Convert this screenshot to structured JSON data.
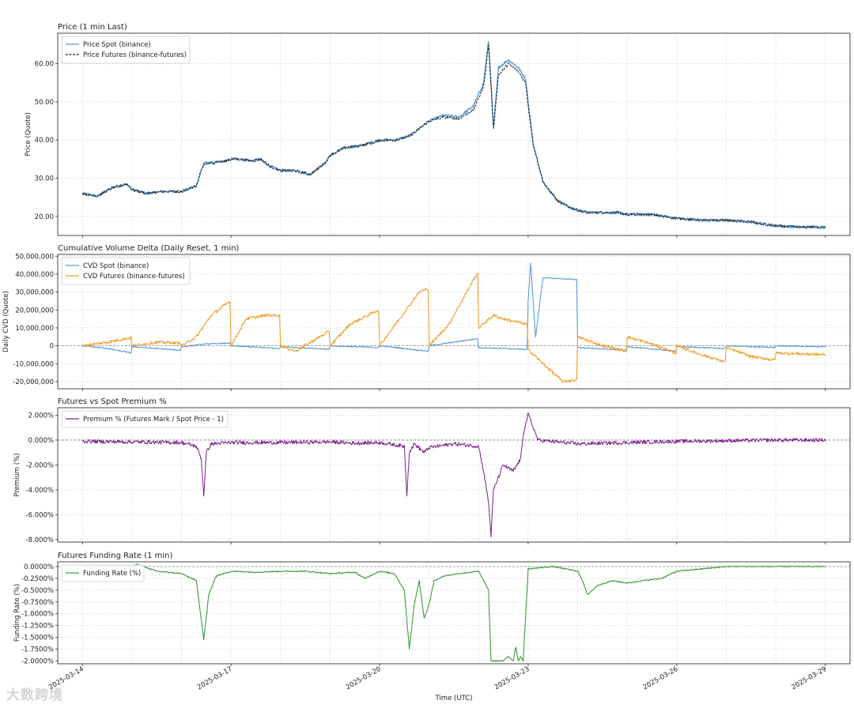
{
  "x_axis": {
    "label": "Time (UTC)",
    "range": [
      -0.5,
      15.5
    ],
    "ticks": [
      {
        "v": 0,
        "label": "2025-03-14"
      },
      {
        "v": 3,
        "label": "2025-03-17"
      },
      {
        "v": 6,
        "label": "2025-03-20"
      },
      {
        "v": 9,
        "label": "2025-03-23"
      },
      {
        "v": 12,
        "label": "2025-03-26"
      },
      {
        "v": 15,
        "label": "2025-03-29"
      }
    ],
    "grid_days": [
      0,
      1,
      2,
      3,
      4,
      5,
      6,
      7,
      8,
      9,
      10,
      11,
      12,
      13,
      14,
      15
    ]
  },
  "watermark": "大数跨境",
  "chart_data": [
    {
      "id": "price",
      "type": "line",
      "title": "Price (1 min Last)",
      "ylabel": "Price (Quote)",
      "ylim": [
        15,
        68
      ],
      "yticks": [
        {
          "v": 20,
          "label": "20.00"
        },
        {
          "v": 30,
          "label": "30.00"
        },
        {
          "v": 40,
          "label": "40.00"
        },
        {
          "v": 50,
          "label": "50.00"
        },
        {
          "v": 60,
          "label": "60.00"
        }
      ],
      "zero_line": false,
      "series": [
        {
          "name": "Price Spot (binance)",
          "color": "#5b9bd5",
          "dash": false,
          "width": 1.4,
          "noise": 0.35,
          "offset": 0,
          "x": [
            0,
            0.3,
            0.6,
            0.9,
            1.0,
            1.3,
            1.6,
            2.0,
            2.3,
            2.4,
            2.45,
            2.6,
            2.9,
            3.0,
            3.2,
            3.4,
            3.6,
            3.8,
            4.0,
            4.3,
            4.6,
            4.9,
            5.0,
            5.3,
            5.6,
            5.9,
            6.0,
            6.3,
            6.6,
            6.9,
            7.0,
            7.3,
            7.6,
            7.9,
            8.0,
            8.1,
            8.2,
            8.25,
            8.3,
            8.4,
            8.6,
            8.8,
            8.9,
            8.95,
            9.0,
            9.1,
            9.3,
            9.6,
            9.9,
            10.2,
            10.5,
            10.8,
            11.0,
            11.5,
            12.0,
            12.5,
            13.0,
            13.5,
            14.0,
            14.5,
            15.0
          ],
          "y": [
            26,
            25.3,
            27.5,
            28.5,
            27,
            26,
            26.5,
            26.5,
            28,
            32,
            34,
            34,
            34.5,
            35,
            35,
            34.5,
            35,
            33,
            32,
            32,
            31,
            34,
            36,
            38,
            38.5,
            39.5,
            40,
            40,
            41,
            44,
            45,
            46.5,
            46,
            49,
            52,
            55,
            66,
            55,
            43,
            59,
            61,
            59,
            57,
            56,
            50,
            39,
            29,
            24,
            22,
            21,
            21,
            21,
            20.5,
            20.5,
            19.5,
            19,
            19,
            18.5,
            17.5,
            17.2,
            17.2
          ]
        },
        {
          "name": "Price Futures (binance-futures)",
          "color": "#1f1f1f",
          "dash": true,
          "width": 1.0,
          "noise": 0.35,
          "offset": -0.5,
          "x": [
            0,
            0.3,
            0.6,
            0.9,
            1.0,
            1.3,
            1.6,
            2.0,
            2.3,
            2.4,
            2.45,
            2.6,
            2.9,
            3.0,
            3.2,
            3.4,
            3.6,
            3.8,
            4.0,
            4.3,
            4.6,
            4.9,
            5.0,
            5.3,
            5.6,
            5.9,
            6.0,
            6.3,
            6.6,
            6.9,
            7.0,
            7.3,
            7.6,
            7.9,
            8.0,
            8.1,
            8.2,
            8.25,
            8.3,
            8.4,
            8.6,
            8.8,
            8.9,
            8.95,
            9.0,
            9.1,
            9.3,
            9.6,
            9.9,
            10.2,
            10.5,
            10.8,
            11.0,
            11.5,
            12.0,
            12.5,
            13.0,
            13.5,
            14.0,
            14.5,
            15.0
          ],
          "y": [
            26,
            25.3,
            27.5,
            28.5,
            27,
            26,
            26.5,
            26.5,
            28,
            32,
            33.5,
            34,
            34.5,
            35,
            35,
            34.5,
            35,
            33,
            32,
            32,
            31,
            34,
            36,
            38,
            38.5,
            39.5,
            40,
            40,
            41,
            44,
            45,
            46,
            45.5,
            48,
            51,
            54,
            65,
            54,
            43,
            57,
            60,
            58,
            56,
            55,
            49,
            39,
            29,
            24,
            22,
            21,
            21,
            21,
            20.5,
            20.5,
            19.5,
            19,
            19,
            18.5,
            17.5,
            17.2,
            17.2
          ]
        }
      ]
    },
    {
      "id": "cvd",
      "type": "line",
      "title": "Cumulative Volume Delta (Daily Reset, 1 min)",
      "ylabel": "Daily CVD (Quote)",
      "ylim": [
        -24000000,
        51000000
      ],
      "yticks": [
        {
          "v": 50000000,
          "label": "50,000,000"
        },
        {
          "v": 40000000,
          "label": "40,000,000"
        },
        {
          "v": 30000000,
          "label": "30,000,000"
        },
        {
          "v": 20000000,
          "label": "20,000,000"
        },
        {
          "v": 10000000,
          "label": "10,000,000"
        },
        {
          "v": 0,
          "label": "0"
        },
        {
          "v": -10000000,
          "label": "-10,000,000"
        },
        {
          "v": -20000000,
          "label": "-20,000,000"
        }
      ],
      "zero_line": true,
      "series": [
        {
          "name": "CVD Spot (binance)",
          "color": "#5b9bd5",
          "dash": false,
          "width": 1.1,
          "noise": 300000,
          "offset": 0,
          "x": [
            0,
            0.5,
            0.98,
            1.0,
            1.98,
            2.0,
            2.5,
            2.98,
            3.0,
            3.98,
            4.0,
            4.98,
            5.0,
            5.98,
            6.0,
            6.98,
            7.0,
            7.5,
            7.98,
            8.0,
            8.98,
            9.0,
            9.05,
            9.15,
            9.3,
            9.98,
            10.0,
            10.98,
            11.0,
            11.98,
            12.0,
            12.98,
            13.0,
            13.98,
            14.0,
            15.0
          ],
          "y": [
            0,
            -1500000,
            -4000000,
            -500000,
            -2500000,
            -500000,
            1000000,
            1500000,
            0,
            -1500000,
            -500000,
            -2000000,
            0,
            -1000000,
            0,
            -3000000,
            0,
            2000000,
            4000000,
            -1000000,
            -2000000,
            25000000,
            46000000,
            5000000,
            38000000,
            37000000,
            -1000000,
            -2500000,
            -500000,
            -3000000,
            -500000,
            -1500000,
            0,
            -1000000,
            0,
            -500000
          ]
        },
        {
          "name": "CVD Futures (binance-futures)",
          "color": "#f0a030",
          "dash": false,
          "width": 1.1,
          "noise": 800000,
          "offset": 0,
          "x": [
            0,
            0.5,
            0.98,
            1.0,
            1.5,
            1.98,
            2.0,
            2.3,
            2.6,
            2.98,
            3.0,
            3.3,
            3.7,
            3.98,
            4.0,
            4.3,
            4.98,
            5.0,
            5.4,
            5.98,
            6.0,
            6.4,
            6.8,
            6.98,
            7.0,
            7.4,
            7.98,
            8.0,
            8.3,
            8.5,
            8.98,
            9.0,
            9.3,
            9.7,
            9.98,
            10.0,
            10.5,
            10.98,
            11.0,
            11.5,
            11.98,
            12.0,
            12.5,
            12.98,
            13.0,
            13.5,
            13.98,
            14.0,
            15.0
          ],
          "y": [
            0,
            2000000,
            4500000,
            0,
            2000000,
            1500000,
            0,
            5000000,
            17000000,
            25000000,
            0,
            15000000,
            17000000,
            17000000,
            0,
            -3000000,
            8000000,
            0,
            12000000,
            20000000,
            0,
            15000000,
            30000000,
            32000000,
            0,
            12000000,
            41000000,
            10000000,
            17000000,
            15000000,
            12000000,
            -2000000,
            -10000000,
            -20000000,
            -19000000,
            5000000,
            0,
            -3000000,
            5000000,
            1000000,
            -4000000,
            0,
            -5000000,
            -9000000,
            -1000000,
            -6000000,
            -8000000,
            -4000000,
            -5000000
          ]
        }
      ]
    },
    {
      "id": "premium",
      "type": "line",
      "title": "Futures vs Spot Premium %",
      "ylabel": "Premium (%)",
      "ylim": [
        -8.2,
        2.6
      ],
      "yticks": [
        {
          "v": 2,
          "label": "2.000%"
        },
        {
          "v": 0,
          "label": "0.000%"
        },
        {
          "v": -2,
          "label": "-2.000%"
        },
        {
          "v": -4,
          "label": "-4.000%"
        },
        {
          "v": -6,
          "label": "-6.000%"
        },
        {
          "v": -8,
          "label": "-8.000%"
        }
      ],
      "zero_line": true,
      "series": [
        {
          "name": "Premium % (Futures Mark / Spot Price - 1)",
          "color": "#7b1f8a",
          "dash": false,
          "width": 1.0,
          "noise": 0.15,
          "offset": 0,
          "x": [
            0,
            1.0,
            2.0,
            2.3,
            2.4,
            2.45,
            2.5,
            2.6,
            3.0,
            4.0,
            5.0,
            5.5,
            6.0,
            6.5,
            6.55,
            6.6,
            6.7,
            6.9,
            7.0,
            7.5,
            8.0,
            8.1,
            8.2,
            8.25,
            8.3,
            8.4,
            8.5,
            8.7,
            8.85,
            8.9,
            9.0,
            9.2,
            10.0,
            11.0,
            12.0,
            13.0,
            14.0,
            15.0
          ],
          "y": [
            -0.1,
            -0.15,
            -0.2,
            -0.5,
            -1.5,
            -4.5,
            -1.0,
            -0.3,
            -0.2,
            -0.2,
            -0.15,
            -0.25,
            -0.2,
            -0.5,
            -4.4,
            -1.0,
            -0.3,
            -1.0,
            -0.6,
            -0.3,
            -0.5,
            -2.5,
            -5.0,
            -7.7,
            -4.0,
            -3.0,
            -2.0,
            -2.5,
            -1.5,
            0.5,
            2.1,
            0.0,
            -0.3,
            -0.2,
            -0.1,
            -0.05,
            0.0,
            0.0
          ]
        }
      ]
    },
    {
      "id": "funding",
      "type": "line",
      "title": "Futures Funding Rate (1 min)",
      "ylabel": "Funding Rate (%)",
      "ylim": [
        -2.06,
        0.1
      ],
      "yticks": [
        {
          "v": 0,
          "label": "0.0000%"
        },
        {
          "v": -0.25,
          "label": "-0.2500%"
        },
        {
          "v": -0.5,
          "label": "-0.5000%"
        },
        {
          "v": -0.75,
          "label": "-0.7500%"
        },
        {
          "v": -1.0,
          "label": "-1.0000%"
        },
        {
          "v": -1.25,
          "label": "-1.2500%"
        },
        {
          "v": -1.5,
          "label": "-1.5000%"
        },
        {
          "v": -1.75,
          "label": "-1.7500%"
        },
        {
          "v": -2.0,
          "label": "-2.0000%"
        }
      ],
      "zero_line": true,
      "series": [
        {
          "name": "Funding Rate (%)",
          "color": "#3d9a3d",
          "dash": false,
          "width": 1.1,
          "noise": 0.012,
          "offset": 0,
          "x": [
            0,
            1.0,
            1.1,
            1.5,
            2.0,
            2.3,
            2.45,
            2.55,
            2.7,
            3.0,
            3.5,
            4.0,
            4.5,
            5.0,
            5.5,
            5.7,
            6.0,
            6.3,
            6.5,
            6.6,
            6.7,
            6.8,
            6.9,
            7.0,
            7.1,
            7.3,
            7.6,
            8.0,
            8.2,
            8.25,
            8.5,
            8.6,
            8.7,
            8.75,
            8.8,
            8.85,
            8.9,
            9.0,
            9.5,
            10.0,
            10.1,
            10.2,
            10.4,
            10.7,
            11.0,
            11.3,
            11.7,
            12.0,
            12.5,
            13.0,
            14.0,
            15.0
          ],
          "y": [
            0,
            0,
            0.05,
            -0.1,
            -0.15,
            -0.3,
            -1.55,
            -0.6,
            -0.2,
            -0.1,
            -0.12,
            -0.1,
            -0.1,
            -0.15,
            -0.12,
            -0.25,
            -0.1,
            -0.15,
            -0.5,
            -1.75,
            -0.8,
            -0.3,
            -1.1,
            -0.8,
            -0.3,
            -0.2,
            -0.15,
            -0.1,
            -0.5,
            -2.0,
            -2.0,
            -1.9,
            -2.0,
            -1.7,
            -2.0,
            -1.9,
            -2.0,
            -0.05,
            0,
            -0.1,
            -0.3,
            -0.6,
            -0.4,
            -0.3,
            -0.35,
            -0.3,
            -0.25,
            -0.1,
            -0.05,
            0,
            0,
            0
          ]
        }
      ]
    }
  ]
}
